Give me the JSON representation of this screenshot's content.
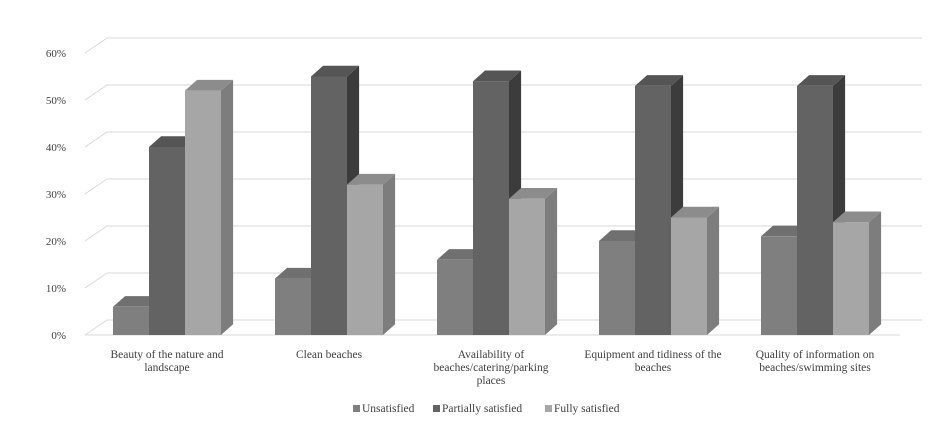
{
  "chart_data": {
    "type": "bar",
    "style": "3d-clustered-column",
    "categories": [
      [
        "Beauty of the nature and",
        "landscape"
      ],
      [
        "Clean beaches"
      ],
      [
        "Availability of",
        "beaches/catering/parking",
        "places"
      ],
      [
        "Equipment and tidiness of the",
        "beaches"
      ],
      [
        "Quality of information on",
        "beaches/swimming sites"
      ]
    ],
    "series": [
      {
        "name": "Unsatisfied",
        "values": [
          0.06,
          0.12,
          0.16,
          0.2,
          0.21
        ],
        "front": "#7f7f7f",
        "side": "#5f5f5f",
        "top": "#707070"
      },
      {
        "name": "Partially satisfied",
        "values": [
          0.4,
          0.55,
          0.54,
          0.53,
          0.53
        ],
        "front": "#636363",
        "side": "#3c3c3c",
        "top": "#555555"
      },
      {
        "name": "Fully satisfied",
        "values": [
          0.52,
          0.32,
          0.29,
          0.25,
          0.24
        ],
        "front": "#a6a6a6",
        "side": "#7d7d7d",
        "top": "#8c8c8c"
      }
    ],
    "ylim": [
      0,
      0.6
    ],
    "yticks": [
      "0%",
      "10%",
      "20%",
      "30%",
      "40%",
      "50%",
      "60%"
    ],
    "grid": true,
    "legend": "bottom",
    "title": "",
    "xlabel": "",
    "ylabel": ""
  }
}
